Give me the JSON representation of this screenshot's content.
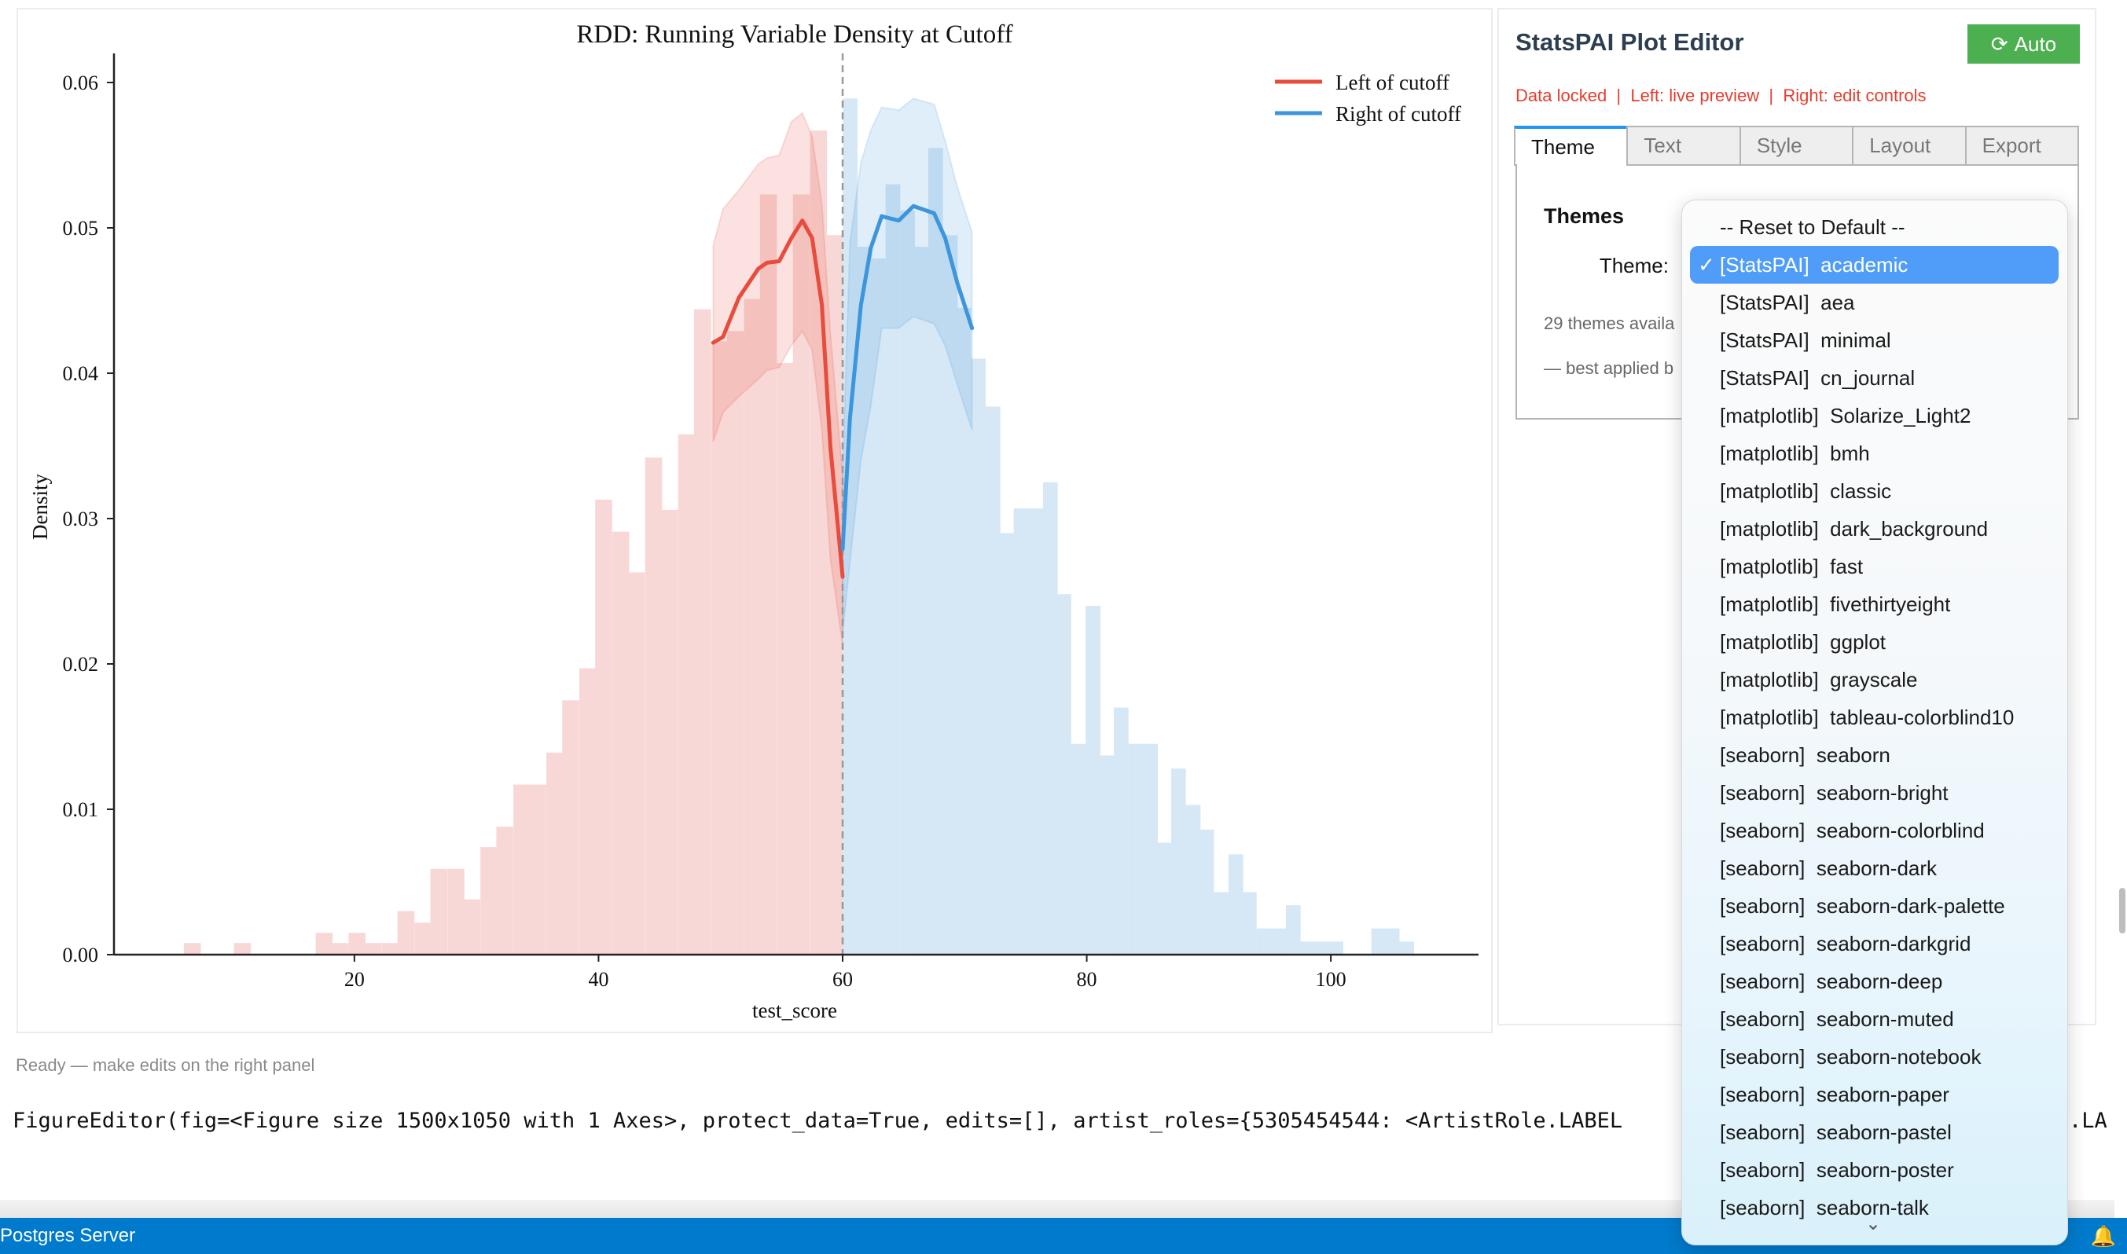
{
  "chart": {
    "chart_data": {
      "type": "histogram+line",
      "title": "RDD: Running Variable Density at Cutoff",
      "xlabel": "test_score",
      "ylabel": "Density",
      "xlim": [
        0.3,
        112.1
      ],
      "ylim": [
        0,
        0.062
      ],
      "x_ticks": [
        "20",
        "40",
        "60",
        "80",
        "100"
      ],
      "y_ticks": [
        "0.00",
        "0.01",
        "0.02",
        "0.03",
        "0.04",
        "0.05",
        "0.06"
      ],
      "cutoff": 60,
      "grid": false,
      "legend_position": "top-right",
      "histograms": [
        {
          "side": "left",
          "color": "#f8d8d6",
          "bin_width": 1.35,
          "x": [
            59.3,
            58.0,
            56.6,
            55.3,
            53.9,
            52.6,
            51.2,
            49.9,
            48.5,
            47.2,
            45.8,
            44.5,
            43.1,
            41.8,
            40.4,
            39.1,
            37.7,
            36.4,
            35.0,
            33.7,
            32.3,
            31.0,
            29.6,
            28.3,
            26.9,
            25.6,
            24.2,
            22.9,
            21.5,
            20.2,
            18.8,
            17.5,
            10.8,
            6.7
          ],
          "density": [
            0.0495,
            0.0567,
            0.0523,
            0.0407,
            0.0523,
            0.0451,
            0.0429,
            0.0422,
            0.0444,
            0.0358,
            0.0306,
            0.0342,
            0.0263,
            0.0291,
            0.0313,
            0.0197,
            0.0175,
            0.0139,
            0.0117,
            0.0117,
            0.0088,
            0.0074,
            0.0038,
            0.0059,
            0.0059,
            0.0022,
            0.003,
            0.0008,
            0.0008,
            0.0015,
            0.0008,
            0.0015,
            0.0008,
            0.0008
          ]
        },
        {
          "side": "right",
          "color": "#d6e8f6",
          "bin_width": 1.17,
          "x": [
            60.6,
            61.8,
            62.9,
            64.1,
            65.3,
            66.4,
            67.6,
            68.8,
            69.9,
            71.1,
            72.3,
            73.5,
            74.6,
            75.8,
            77.0,
            78.1,
            79.3,
            80.5,
            81.6,
            82.8,
            84.0,
            85.2,
            86.3,
            87.5,
            88.7,
            89.8,
            91.0,
            92.2,
            93.3,
            94.5,
            95.7,
            96.9,
            98.0,
            99.2,
            100.4,
            103.9,
            105.0,
            106.2
          ],
          "density": [
            0.0589,
            0.0487,
            0.0479,
            0.053,
            0.0512,
            0.0487,
            0.0555,
            0.0495,
            0.0445,
            0.041,
            0.0377,
            0.029,
            0.0307,
            0.0307,
            0.0325,
            0.0248,
            0.0145,
            0.024,
            0.0137,
            0.017,
            0.0145,
            0.0145,
            0.0077,
            0.0128,
            0.0103,
            0.0086,
            0.0043,
            0.0069,
            0.0043,
            0.0018,
            0.0018,
            0.0034,
            0.0009,
            0.0009,
            0.0009,
            0.0018,
            0.0018,
            0.0009
          ]
        }
      ],
      "series": [
        {
          "name": "Left of cutoff",
          "color": "#e74c3c",
          "band_color": "rgba(231,76,60,0.16)",
          "x": [
            49.4,
            50.2,
            51.5,
            53.1,
            53.8,
            54.8,
            55.8,
            56.7,
            57.5,
            58.3,
            59.0,
            60.0
          ],
          "y": [
            0.0421,
            0.0425,
            0.0452,
            0.0472,
            0.0476,
            0.0477,
            0.0493,
            0.0505,
            0.0493,
            0.0447,
            0.0349,
            0.026
          ],
          "upper": [
            0.0488,
            0.0513,
            0.0526,
            0.0544,
            0.0548,
            0.055,
            0.0573,
            0.0579,
            0.0563,
            0.0517,
            0.0427,
            0.033
          ],
          "lower": [
            0.0353,
            0.0373,
            0.0384,
            0.0396,
            0.0402,
            0.0404,
            0.0419,
            0.0429,
            0.0416,
            0.0361,
            0.0272,
            0.0213
          ]
        },
        {
          "name": "Right of cutoff",
          "color": "#3d95dc",
          "band_color": "rgba(61,149,220,0.16)",
          "x": [
            60.0,
            60.6,
            61.5,
            62.3,
            63.2,
            64.6,
            65.8,
            67.5,
            68.4,
            69.4,
            70.6
          ],
          "y": [
            0.0279,
            0.0369,
            0.0447,
            0.0486,
            0.0508,
            0.0505,
            0.0515,
            0.051,
            0.0493,
            0.0462,
            0.0431
          ],
          "upper": [
            0.033,
            0.049,
            0.0545,
            0.0567,
            0.0583,
            0.0581,
            0.0589,
            0.0585,
            0.056,
            0.0528,
            0.0497
          ],
          "lower": [
            0.0221,
            0.027,
            0.034,
            0.0377,
            0.0431,
            0.0431,
            0.0439,
            0.0434,
            0.0419,
            0.0392,
            0.0361
          ]
        }
      ]
    }
  },
  "status_text": "Ready — make edits on the right panel",
  "repr_text": "FigureEditor(fig=<Figure size 1500x1050 with 1 Axes>, protect_data=True, edits=[], artist_roles={5305454544: <ArtistRole.LABEL",
  "repr_tail": ".LA",
  "statusbar": {
    "left_label": "Postgres Server",
    "bell_icon": "bell-icon"
  },
  "panel": {
    "title": "StatsPAI Plot Editor",
    "auto_button": {
      "icon": "refresh-icon",
      "label": "Auto",
      "color": "#4caf50"
    },
    "info_line": "Data locked  |  Left: live preview  |  Right: edit controls",
    "tabs": [
      {
        "label": "Theme",
        "active": true
      },
      {
        "label": "Text",
        "active": false
      },
      {
        "label": "Style",
        "active": false
      },
      {
        "label": "Layout",
        "active": false
      },
      {
        "label": "Export",
        "active": false
      }
    ],
    "themes_heading": "Themes",
    "theme_label": "Theme:",
    "themes_count": "29 themes availa",
    "themes_note": "— best applied b",
    "dropdown": {
      "selected_index": 1,
      "check": "✓",
      "chevron": "⌄",
      "items": [
        "-- Reset to Default --",
        "[StatsPAI]  academic",
        "[StatsPAI]  aea",
        "[StatsPAI]  minimal",
        "[StatsPAI]  cn_journal",
        "[matplotlib]  Solarize_Light2",
        "[matplotlib]  bmh",
        "[matplotlib]  classic",
        "[matplotlib]  dark_background",
        "[matplotlib]  fast",
        "[matplotlib]  fivethirtyeight",
        "[matplotlib]  ggplot",
        "[matplotlib]  grayscale",
        "[matplotlib]  tableau-colorblind10",
        "[seaborn]  seaborn",
        "[seaborn]  seaborn-bright",
        "[seaborn]  seaborn-colorblind",
        "[seaborn]  seaborn-dark",
        "[seaborn]  seaborn-dark-palette",
        "[seaborn]  seaborn-darkgrid",
        "[seaborn]  seaborn-deep",
        "[seaborn]  seaborn-muted",
        "[seaborn]  seaborn-notebook",
        "[seaborn]  seaborn-paper",
        "[seaborn]  seaborn-pastel",
        "[seaborn]  seaborn-poster",
        "[seaborn]  seaborn-talk"
      ]
    }
  }
}
